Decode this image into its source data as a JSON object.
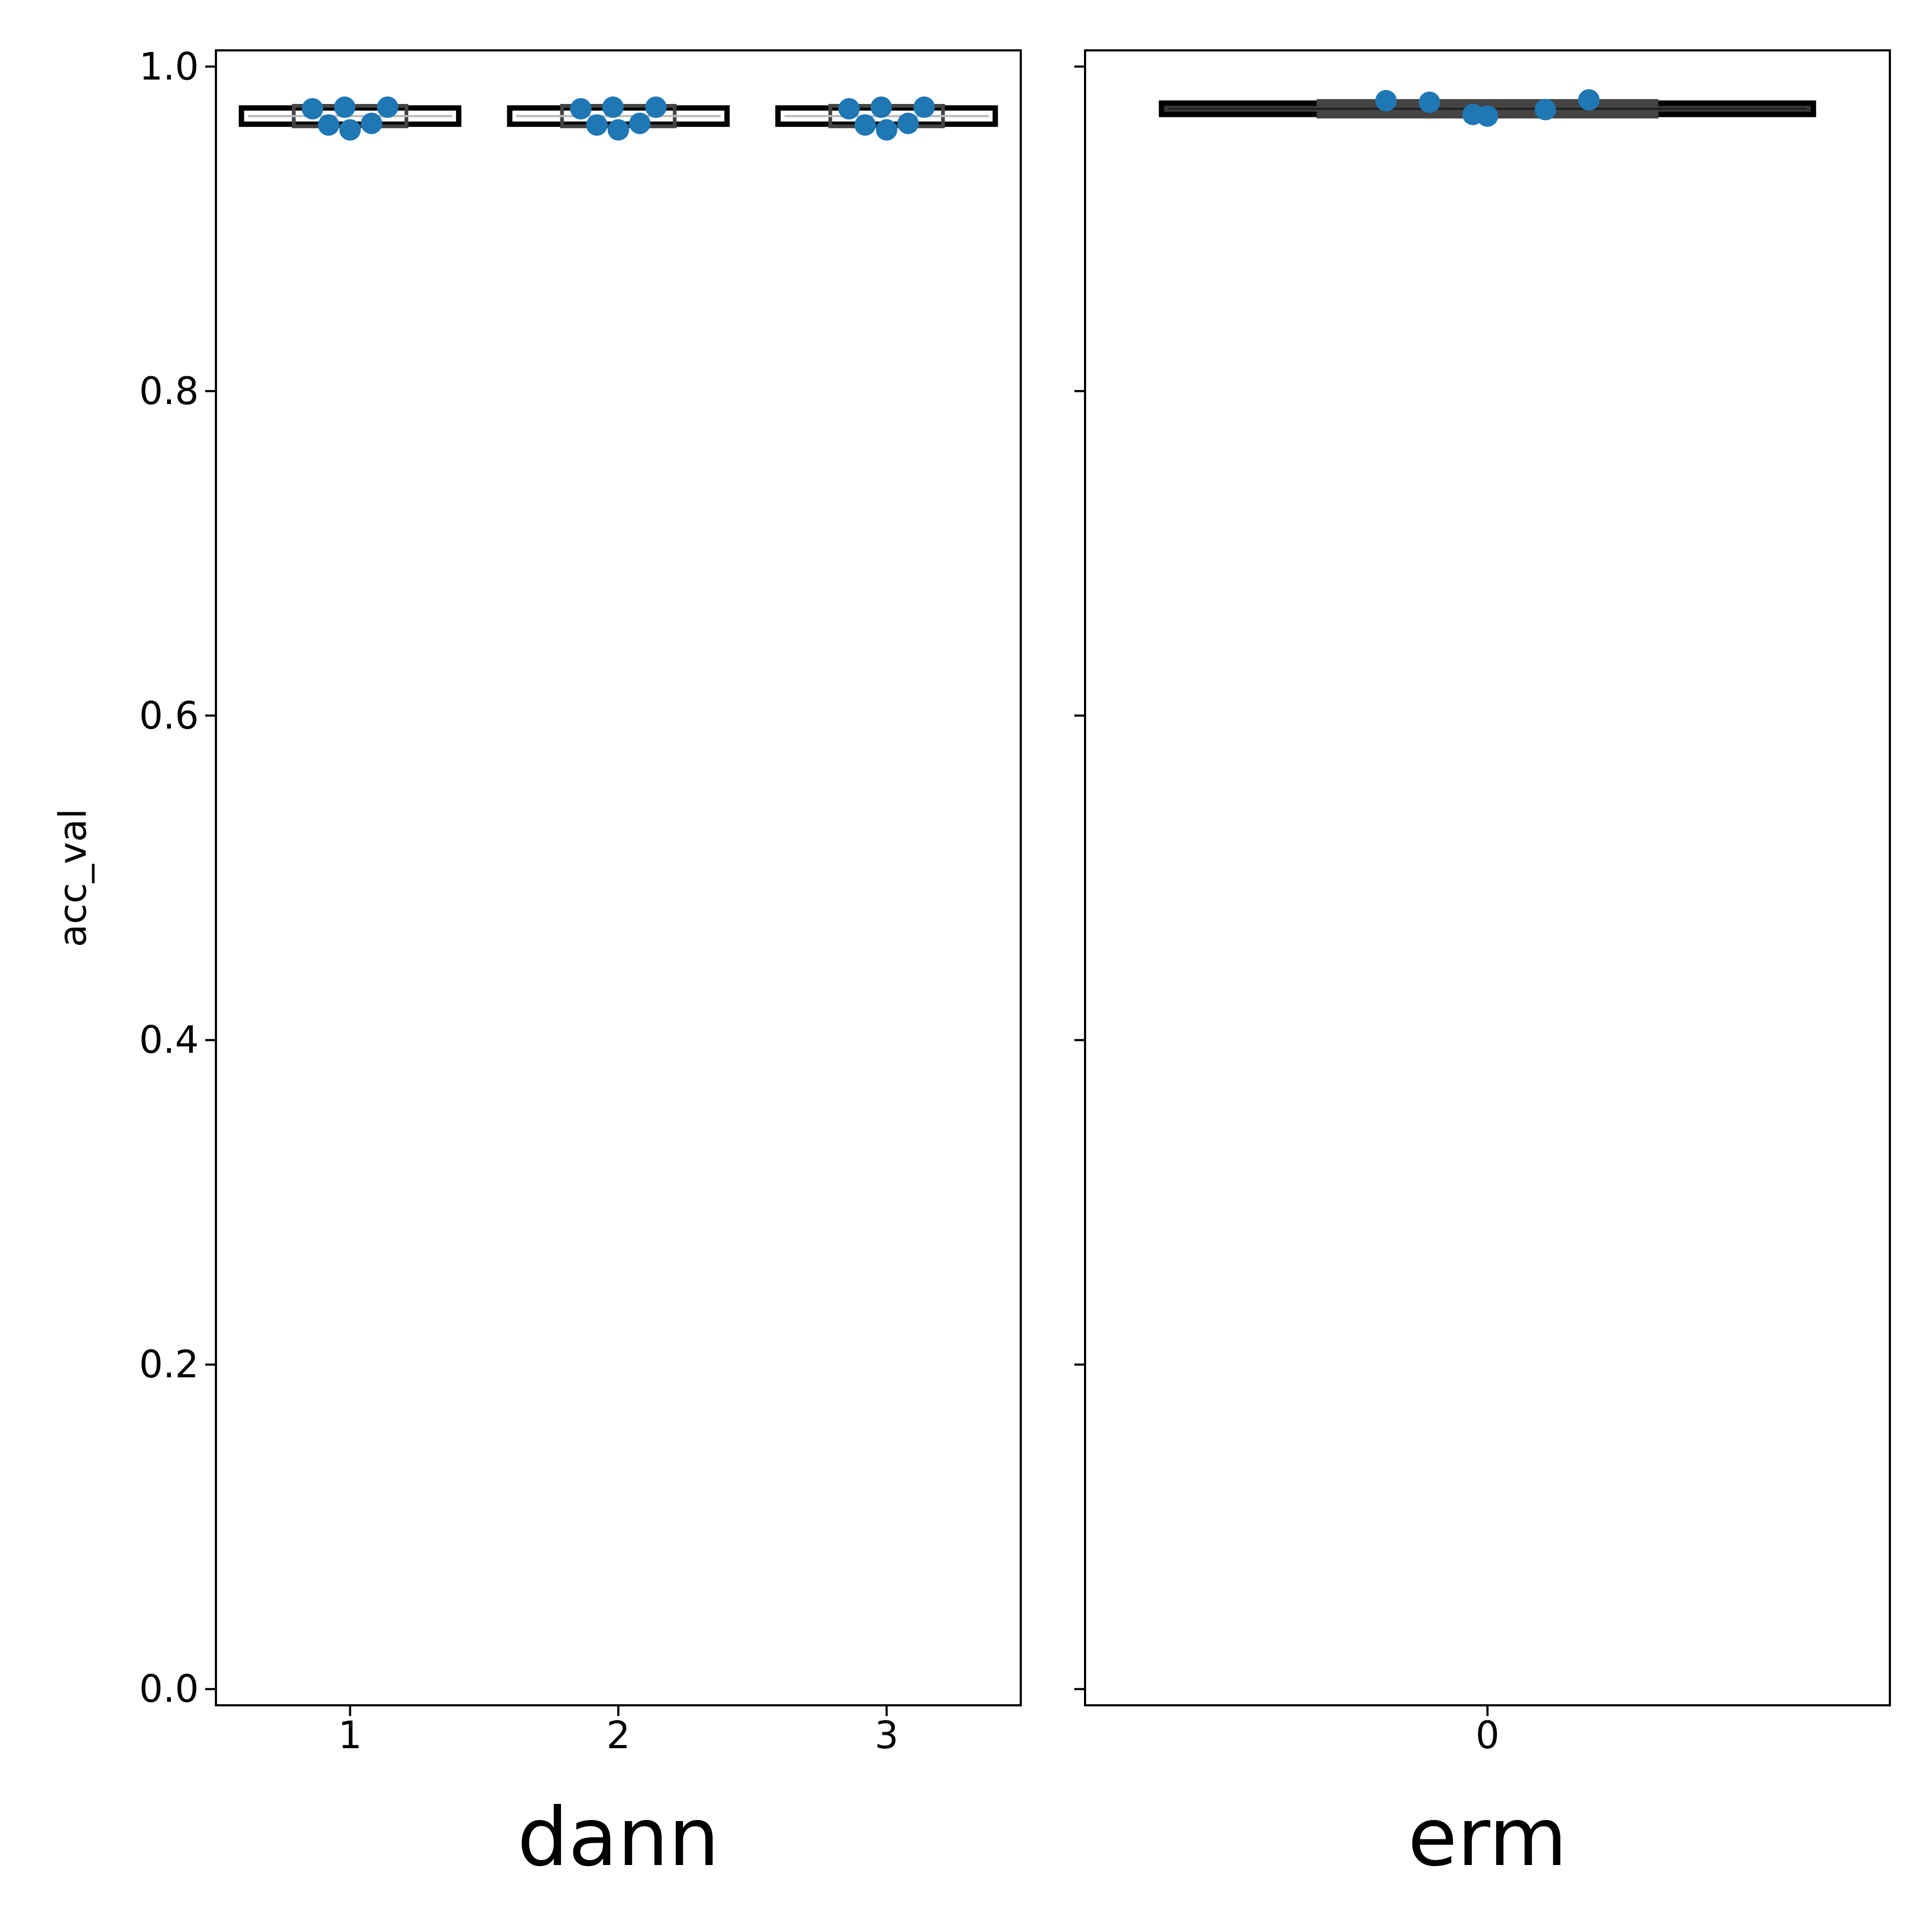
{
  "chart_data": {
    "type": "box",
    "ylabel": "acc_val",
    "ylim": [
      -0.01,
      1.01
    ],
    "y_ticks": [
      0.0,
      0.2,
      0.4,
      0.6,
      0.8,
      1.0
    ],
    "y_tick_labels": [
      "0.0",
      "0.2",
      "0.4",
      "0.6",
      "0.8",
      "1.0"
    ],
    "shared_y": true,
    "grid": false,
    "point_color": "#1f77b4",
    "box_edge_color": "#000000",
    "panels": [
      {
        "xlabel": "dann",
        "categories": [
          "1",
          "2",
          "3"
        ],
        "boxes": [
          {
            "category": "1",
            "q1": 0.9645,
            "median": 0.9695,
            "q3": 0.9745,
            "points": [
              0.974,
              0.964,
              0.975,
              0.961,
              0.965,
              0.975
            ]
          },
          {
            "category": "2",
            "q1": 0.9645,
            "median": 0.9695,
            "q3": 0.9745,
            "points": [
              0.974,
              0.964,
              0.975,
              0.961,
              0.965,
              0.975
            ]
          },
          {
            "category": "3",
            "q1": 0.9645,
            "median": 0.9695,
            "q3": 0.9745,
            "points": [
              0.974,
              0.964,
              0.975,
              0.961,
              0.965,
              0.975
            ]
          }
        ]
      },
      {
        "xlabel": "erm",
        "categories": [
          "0"
        ],
        "boxes": [
          {
            "category": "0",
            "q1": 0.9705,
            "median": 0.974,
            "q3": 0.9775,
            "points": [
              0.979,
              0.978,
              0.9705,
              0.9695,
              0.9735,
              0.9795
            ]
          }
        ]
      }
    ]
  }
}
